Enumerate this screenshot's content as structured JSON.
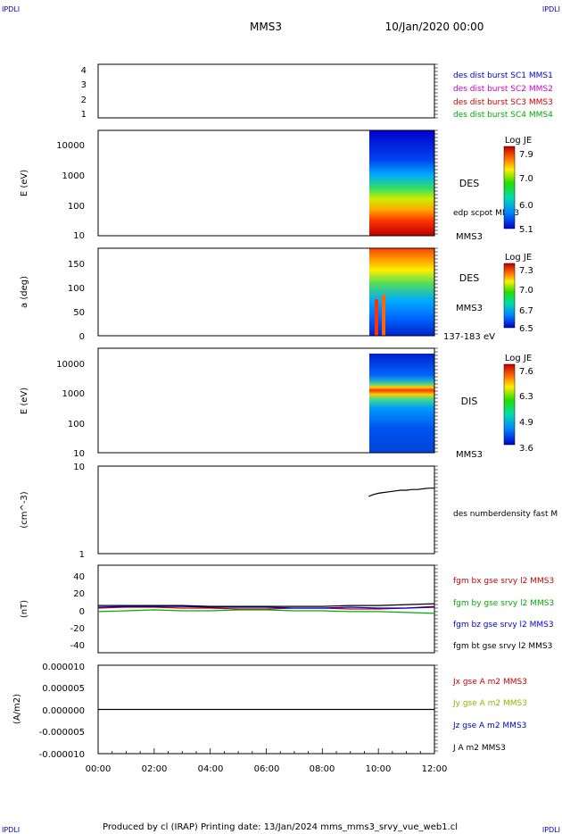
{
  "header": {
    "left": "IPDLI",
    "right": "IPDLI",
    "mission": "MMS3",
    "date": "10/Jan/2020 00:00"
  },
  "footer": {
    "text": "Produced by cl (IRAP)   Printing date: 13/Jan/2024   mms_mms3_srvy_vue_web1.cl",
    "bottom_left": "IPDLI",
    "bottom_right": "IPDLI"
  },
  "colors": {
    "blue": "#0000cc",
    "magenta": "#cc00cc",
    "red": "#cc0000",
    "green": "#00aa00",
    "black": "#000000"
  },
  "chart_data": [
    {
      "type": "line",
      "panel": "burst",
      "yticks": [
        "1",
        "2",
        "3",
        "4"
      ],
      "ylim": [
        0.6,
        4.4
      ],
      "series": [
        {
          "name": "des dist burst SC1 MMS1",
          "color": "#0000cc"
        },
        {
          "name": "des dist burst SC2 MMS2",
          "color": "#cc00cc"
        },
        {
          "name": "des dist burst SC3 MMS3",
          "color": "#cc0000"
        },
        {
          "name": "des dist burst SC4 MMS4",
          "color": "#00aa00"
        }
      ]
    },
    {
      "type": "heatmap",
      "panel": "des-energy",
      "ylabel": "E (eV)",
      "yscale": "log",
      "ylim": [
        10,
        30000
      ],
      "yticks": [
        "10",
        "100",
        "1000",
        "10000"
      ],
      "data_start_hour": 9.65,
      "label": "DES",
      "sub_label": "edp scpot MMS3",
      "mission": "MMS3",
      "colorbar": {
        "title": "Log JE",
        "ticks": [
          "7.9",
          "7.0",
          "6.0",
          "5.1"
        ]
      }
    },
    {
      "type": "heatmap",
      "panel": "des-pitch",
      "ylabel": "a (deg)",
      "ylim": [
        0,
        180
      ],
      "yticks": [
        "0",
        "50",
        "100",
        "150"
      ],
      "data_start_hour": 9.65,
      "label": "DES",
      "mission": "MMS3",
      "energy_range": "137-183 eV",
      "colorbar": {
        "title": "Log JE",
        "ticks": [
          "7.3",
          "7.0",
          "6.7",
          "6.5"
        ]
      }
    },
    {
      "type": "heatmap",
      "panel": "dis-energy",
      "ylabel": "E (eV)",
      "yscale": "log",
      "ylim": [
        10,
        30000
      ],
      "yticks": [
        "10",
        "100",
        "1000",
        "10000"
      ],
      "data_start_hour": 9.65,
      "label": "DIS",
      "mission": "MMS3",
      "colorbar": {
        "title": "Log JE",
        "ticks": [
          "7.6",
          "6.3",
          "4.9",
          "3.6"
        ]
      }
    },
    {
      "type": "line",
      "panel": "density",
      "ylabel": "(cm^-3)",
      "yscale": "log",
      "ylim": [
        1,
        10
      ],
      "yticks": [
        "1",
        "10"
      ],
      "series": [
        {
          "name": "des numberdensity fast M",
          "color": "#000000",
          "x": [
            9.65,
            9.8,
            10.0,
            10.2,
            10.4,
            10.6,
            10.8,
            11.0,
            11.2,
            11.4,
            11.6,
            11.8,
            12.0
          ],
          "y": [
            4.5,
            4.7,
            4.9,
            5.0,
            5.1,
            5.2,
            5.3,
            5.3,
            5.4,
            5.4,
            5.5,
            5.6,
            5.6
          ]
        }
      ]
    },
    {
      "type": "line",
      "panel": "magnetic-field",
      "ylabel": "(nT)",
      "ylim": [
        -50,
        50
      ],
      "yticks": [
        "-40",
        "-20",
        "0",
        "20",
        "40"
      ],
      "series": [
        {
          "name": "fgm bx gse srvy l2 MMS3",
          "color": "#cc0000",
          "x": [
            0,
            1,
            2,
            3,
            4,
            5,
            6,
            7,
            8,
            9,
            10,
            11,
            12
          ],
          "y": [
            1,
            2,
            2,
            1,
            1,
            0,
            0,
            1,
            1,
            0,
            0,
            1,
            3
          ]
        },
        {
          "name": "fgm by gse srvy l2 MMS3",
          "color": "#00aa00",
          "x": [
            0,
            1,
            2,
            3,
            4,
            5,
            6,
            7,
            8,
            9,
            10,
            11,
            12
          ],
          "y": [
            -3,
            -2,
            -1,
            -2,
            -2,
            -1,
            -1,
            -2,
            -2,
            -3,
            -3,
            -4,
            -5
          ]
        },
        {
          "name": "fgm bz gse srvy l2 MMS3",
          "color": "#0000cc",
          "x": [
            0,
            1,
            2,
            3,
            4,
            5,
            6,
            7,
            8,
            9,
            10,
            11,
            12
          ],
          "y": [
            2,
            3,
            3,
            3,
            2,
            2,
            2,
            1,
            1,
            2,
            1,
            1,
            2
          ]
        },
        {
          "name": "fgm bt gse srvy l2 MMS3",
          "color": "#000000",
          "x": [
            0,
            1,
            2,
            3,
            4,
            5,
            6,
            7,
            8,
            9,
            10,
            11,
            12
          ],
          "y": [
            4,
            4,
            4,
            4,
            3,
            3,
            3,
            3,
            3,
            4,
            4,
            5,
            6
          ]
        }
      ]
    },
    {
      "type": "line",
      "panel": "current",
      "ylabel": "(A/m2)",
      "ylim": [
        -1e-05,
        1e-05
      ],
      "yticks": [
        "-0.000010",
        "-0.000005",
        "0.000000",
        "0.000005",
        "0.000010"
      ],
      "xticks": [
        "00:00",
        "02:00",
        "04:00",
        "06:00",
        "08:00",
        "10:00",
        "12:00"
      ],
      "xlim": [
        0,
        12
      ],
      "series": [
        {
          "name": "Jx gse A m2 MMS3",
          "color": "#cc0000"
        },
        {
          "name": "Jy gse A m2 MMS3",
          "color": "#88bb00"
        },
        {
          "name": "Jz gse A m2 MMS3",
          "color": "#0000cc"
        },
        {
          "name": "J A m2 MMS3",
          "color": "#000000",
          "x": [
            0,
            12
          ],
          "y": [
            0,
            0
          ]
        }
      ]
    }
  ]
}
